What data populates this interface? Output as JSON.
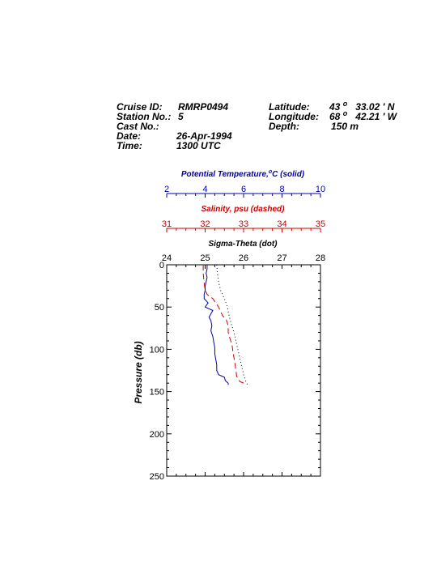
{
  "header": {
    "cruise_id_label": "Cruise ID:",
    "cruise_id": "RMRP0494",
    "station_label": "Station No.:",
    "station": "5",
    "cast_label": "Cast No.:",
    "cast": "",
    "date_label": "Date:",
    "date": "26-Apr-1994",
    "time_label": "Time:",
    "time": "1300 UTC",
    "latitude_label": "Latitude:",
    "latitude_deg": "43",
    "latitude_deg_mark": "o",
    "latitude_min": "33.02 ' N",
    "longitude_label": "Longitude:",
    "longitude_deg": "68",
    "longitude_deg_mark": "o",
    "longitude_min": "42.21 ' W",
    "depth_label": "Depth:",
    "depth": "150 m"
  },
  "chart_data": {
    "type": "line",
    "colors": {
      "temperature": "#0000aa",
      "salinity": "#cc0000",
      "sigma": "#000000"
    },
    "axes": {
      "temperature": {
        "label_prefix": "Potential Temperature,",
        "label_deg": "o",
        "label_suffix": "C (solid)",
        "range": [
          2,
          10
        ],
        "ticks": [
          "2",
          "4",
          "6",
          "8",
          "10"
        ]
      },
      "salinity": {
        "label": "Salinity, psu  (dashed)",
        "range": [
          31,
          35
        ],
        "ticks": [
          "31",
          "32",
          "33",
          "34",
          "35"
        ]
      },
      "sigma": {
        "label": "Sigma-Theta (dot)",
        "range": [
          24,
          28
        ],
        "ticks": [
          "24",
          "25",
          "26",
          "27",
          "28"
        ]
      },
      "pressure": {
        "label": "Pressure (db)",
        "range": [
          0,
          250
        ],
        "reversed": true,
        "ticks": [
          "0",
          "50",
          "100",
          "150",
          "200",
          "250"
        ]
      }
    },
    "series": [
      {
        "name": "Potential Temperature",
        "style": "solid",
        "axis": "temperature",
        "points": [
          [
            4.1,
            0
          ],
          [
            4.1,
            5
          ],
          [
            4.05,
            10
          ],
          [
            4.1,
            15
          ],
          [
            4.05,
            20
          ],
          [
            4.0,
            25
          ],
          [
            4.0,
            30
          ],
          [
            3.95,
            35
          ],
          [
            3.95,
            40
          ],
          [
            4.15,
            45
          ],
          [
            4.0,
            50
          ],
          [
            4.4,
            54
          ],
          [
            4.3,
            58
          ],
          [
            4.2,
            62
          ],
          [
            4.3,
            66
          ],
          [
            4.35,
            72
          ],
          [
            4.3,
            78
          ],
          [
            4.4,
            85
          ],
          [
            4.45,
            92
          ],
          [
            4.5,
            98
          ],
          [
            4.5,
            105
          ],
          [
            4.55,
            112
          ],
          [
            4.6,
            118
          ],
          [
            4.6,
            125
          ],
          [
            4.7,
            130
          ],
          [
            5.0,
            133
          ],
          [
            5.05,
            137
          ],
          [
            5.2,
            140
          ],
          [
            5.2,
            142
          ]
        ]
      },
      {
        "name": "Salinity",
        "style": "dashed",
        "axis": "salinity",
        "points": [
          [
            31.95,
            0
          ],
          [
            31.95,
            10
          ],
          [
            31.97,
            20
          ],
          [
            32.0,
            30
          ],
          [
            32.05,
            35
          ],
          [
            32.2,
            40
          ],
          [
            32.35,
            50
          ],
          [
            32.4,
            55
          ],
          [
            32.45,
            60
          ],
          [
            32.55,
            65
          ],
          [
            32.6,
            72
          ],
          [
            32.6,
            80
          ],
          [
            32.65,
            88
          ],
          [
            32.7,
            95
          ],
          [
            32.72,
            102
          ],
          [
            32.75,
            110
          ],
          [
            32.78,
            118
          ],
          [
            32.8,
            125
          ],
          [
            32.82,
            132
          ],
          [
            32.9,
            138
          ],
          [
            33.0,
            140
          ],
          [
            33.05,
            142
          ]
        ]
      },
      {
        "name": "Sigma-Theta",
        "style": "dotted",
        "axis": "sigma",
        "points": [
          [
            25.3,
            0
          ],
          [
            25.32,
            10
          ],
          [
            25.35,
            20
          ],
          [
            25.4,
            30
          ],
          [
            25.5,
            40
          ],
          [
            25.58,
            50
          ],
          [
            25.62,
            60
          ],
          [
            25.68,
            70
          ],
          [
            25.75,
            80
          ],
          [
            25.8,
            90
          ],
          [
            25.85,
            100
          ],
          [
            25.9,
            110
          ],
          [
            25.95,
            120
          ],
          [
            26.0,
            130
          ],
          [
            26.05,
            137
          ],
          [
            26.1,
            142
          ]
        ]
      }
    ]
  }
}
